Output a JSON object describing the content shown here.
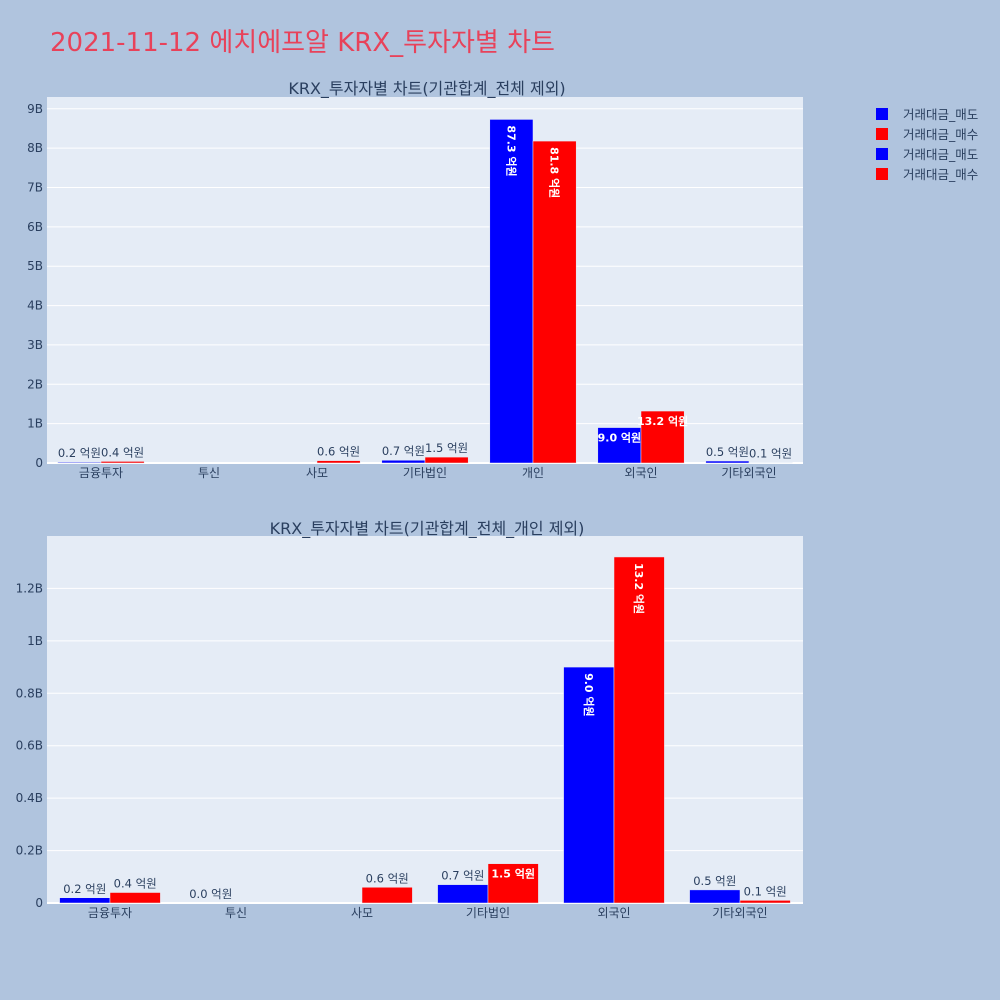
{
  "title": "2021-11-12 에치에프알 KRX_투자자별 차트",
  "legend": [
    {
      "name": "거래대금_매도",
      "color": "#0000ff"
    },
    {
      "name": "거래대금_매수",
      "color": "#ff0000"
    },
    {
      "name": "거래대금_매도",
      "color": "#0000ff"
    },
    {
      "name": "거래대금_매수",
      "color": "#ff0000"
    }
  ],
  "chart_data": [
    {
      "type": "bar",
      "title": "KRX_투자자별 차트(기관합계_전체 제외)",
      "categories": [
        "금융투자",
        "투신",
        "사모",
        "기타법인",
        "개인",
        "외국인",
        "기타외국인"
      ],
      "ylim": [
        0,
        9300000000
      ],
      "yticks": [
        0,
        1000000000,
        2000000000,
        3000000000,
        4000000000,
        5000000000,
        6000000000,
        7000000000,
        8000000000,
        9000000000
      ],
      "ytick_labels": [
        "0",
        "1B",
        "2B",
        "3B",
        "4B",
        "5B",
        "6B",
        "7B",
        "8B",
        "9B"
      ],
      "grid": true,
      "series": [
        {
          "name": "거래대금_매도",
          "color": "#0000ff",
          "values": [
            20000000,
            null,
            null,
            70000000,
            8730000000,
            900000000,
            50000000
          ],
          "labels": [
            "0.2 억원",
            "",
            "",
            "0.7 억원",
            "87.3 억원",
            "9.0 억원",
            "0.5 억원"
          ]
        },
        {
          "name": "거래대금_매수",
          "color": "#ff0000",
          "values": [
            40000000,
            null,
            60000000,
            150000000,
            8180000000,
            1320000000,
            10000000
          ],
          "labels": [
            "0.4 억원",
            "",
            "0.6 억원",
            "1.5 억원",
            "81.8 억원",
            "13.2 억원",
            "0.1 억원"
          ]
        }
      ]
    },
    {
      "type": "bar",
      "title": "KRX_투자자별 차트(기관합계_전체_개인 제외)",
      "categories": [
        "금융투자",
        "투신",
        "사모",
        "기타법인",
        "외국인",
        "기타외국인"
      ],
      "ylim": [
        0,
        1400000000
      ],
      "yticks": [
        0,
        200000000,
        400000000,
        600000000,
        800000000,
        1000000000,
        1200000000
      ],
      "ytick_labels": [
        "0",
        "0.2B",
        "0.4B",
        "0.6B",
        "0.8B",
        "1B",
        "1.2B"
      ],
      "grid": true,
      "series": [
        {
          "name": "거래대금_매도",
          "color": "#0000ff",
          "values": [
            20000000,
            0,
            null,
            70000000,
            900000000,
            50000000
          ],
          "labels": [
            "0.2 억원",
            "0.0 억원",
            "",
            "0.7 억원",
            "9.0 억원",
            "0.5 억원"
          ]
        },
        {
          "name": "거래대금_매수",
          "color": "#ff0000",
          "values": [
            40000000,
            null,
            60000000,
            150000000,
            1320000000,
            10000000
          ],
          "labels": [
            "0.4 억원",
            "",
            "0.6 억원",
            "1.5 억원",
            "13.2 억원",
            "0.1 억원"
          ]
        }
      ]
    }
  ]
}
